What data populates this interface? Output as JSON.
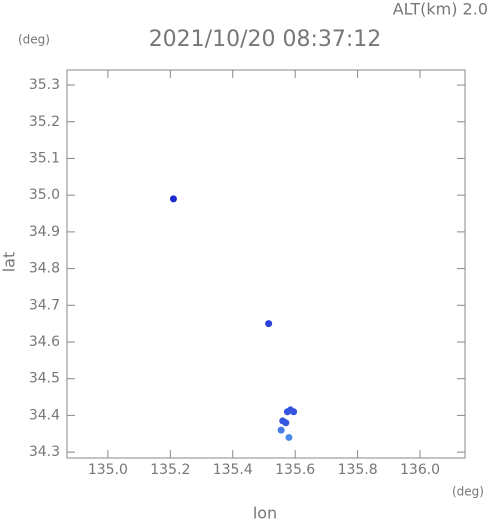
{
  "chart_data": {
    "type": "scatter",
    "title": "2021/10/20 08:37:12",
    "subtitle": "ALT(km) 2.0",
    "y_unit": "(deg)",
    "x_unit": "(deg)",
    "xlabel": "lon",
    "ylabel": "lat",
    "x": [
      135.21,
      135.515,
      135.575,
      135.585,
      135.595,
      135.56,
      135.57,
      135.555,
      135.58
    ],
    "y": [
      34.99,
      34.65,
      34.41,
      34.415,
      34.41,
      34.385,
      34.38,
      34.36,
      34.34
    ],
    "colors": [
      "#1a2bd0",
      "#2a40d8",
      "#3355e0",
      "#3355e0",
      "#3355e0",
      "#3355e0",
      "#3355e0",
      "#4a7ae6",
      "#4a8ae6"
    ],
    "xlim": [
      134.869,
      136.144
    ],
    "ylim": [
      34.284,
      35.341
    ],
    "xticks": [
      {
        "value": 135,
        "label": "135.0"
      },
      135.2,
      135.4,
      135.6,
      135.8,
      {
        "value": 136,
        "label": "136.0"
      }
    ],
    "yticks": [
      35.3,
      35.2,
      35.1,
      {
        "value": 35,
        "label": "35.0"
      },
      34.9,
      34.8,
      34.7,
      34.6,
      34.5,
      34.4,
      34.3
    ]
  }
}
